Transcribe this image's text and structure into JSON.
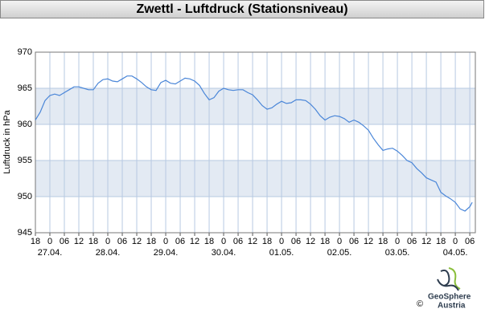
{
  "chart_data": {
    "type": "line",
    "title": "Zwettl - Luftdruck (Stationsniveau)",
    "y_label": "Luftdruck in hPa",
    "x": [
      0,
      2,
      4,
      6,
      8,
      10,
      12,
      14,
      16,
      18,
      20,
      22,
      24,
      26,
      28,
      30,
      32,
      34,
      36,
      38,
      40,
      42,
      44,
      46,
      48,
      50,
      52,
      54,
      56,
      58,
      60,
      62,
      64,
      66,
      68,
      70,
      72,
      74,
      76,
      78,
      80,
      82,
      84,
      86,
      88,
      90,
      92,
      94,
      96,
      98,
      100,
      102,
      104,
      106,
      108,
      110,
      112,
      114,
      116,
      118,
      120,
      122,
      124,
      126,
      128,
      130,
      132,
      134,
      136,
      138,
      140,
      142,
      144,
      146,
      148,
      150,
      152,
      154,
      156,
      158,
      160,
      162,
      164,
      166,
      168,
      170,
      172,
      174,
      176,
      178,
      180,
      181
    ],
    "series": [
      {
        "name": "Luftdruck",
        "color": "#4a86d8",
        "values": [
          960.6,
          961.7,
          963.3,
          964.0,
          964.2,
          964.0,
          964.4,
          964.8,
          965.2,
          965.2,
          965.0,
          964.8,
          964.8,
          965.7,
          966.2,
          966.3,
          966.0,
          965.9,
          966.3,
          966.7,
          966.7,
          966.3,
          965.8,
          965.2,
          964.8,
          964.7,
          965.8,
          966.1,
          965.7,
          965.6,
          966.0,
          966.4,
          966.3,
          966.0,
          965.4,
          964.3,
          963.4,
          963.7,
          964.6,
          965.0,
          964.8,
          964.7,
          964.8,
          964.8,
          964.4,
          964.1,
          963.4,
          962.6,
          962.1,
          962.3,
          962.8,
          963.2,
          962.9,
          963.0,
          963.4,
          963.4,
          963.3,
          962.8,
          962.1,
          961.2,
          960.6,
          961.0,
          961.2,
          961.1,
          960.8,
          960.3,
          960.6,
          960.3,
          959.8,
          959.2,
          958.1,
          957.2,
          956.4,
          956.6,
          956.7,
          956.3,
          955.7,
          955.0,
          954.7,
          953.9,
          953.3,
          952.6,
          952.3,
          952.0,
          950.6,
          950.1,
          949.7,
          949.2,
          948.3,
          948.0,
          948.6,
          949.2
        ]
      }
    ],
    "xlim": [
      0,
      182.3
    ],
    "xticks": [
      {
        "value": 0,
        "label": "18"
      },
      {
        "value": 6,
        "label": "0"
      },
      {
        "value": 12,
        "label": "06"
      },
      {
        "value": 18,
        "label": "12"
      },
      {
        "value": 24,
        "label": "18"
      },
      {
        "value": 30,
        "label": "0"
      },
      {
        "value": 36,
        "label": "06"
      },
      {
        "value": 42,
        "label": "12"
      },
      {
        "value": 48,
        "label": "18"
      },
      {
        "value": 54,
        "label": "0"
      },
      {
        "value": 60,
        "label": "06"
      },
      {
        "value": 66,
        "label": "12"
      },
      {
        "value": 72,
        "label": "18"
      },
      {
        "value": 78,
        "label": "0"
      },
      {
        "value": 84,
        "label": "06"
      },
      {
        "value": 90,
        "label": "12"
      },
      {
        "value": 96,
        "label": "18"
      },
      {
        "value": 102,
        "label": "0"
      },
      {
        "value": 108,
        "label": "06"
      },
      {
        "value": 114,
        "label": "12"
      },
      {
        "value": 120,
        "label": "18"
      },
      {
        "value": 126,
        "label": "0"
      },
      {
        "value": 132,
        "label": "06"
      },
      {
        "value": 138,
        "label": "12"
      },
      {
        "value": 144,
        "label": "18"
      },
      {
        "value": 150,
        "label": "0"
      },
      {
        "value": 156,
        "label": "06"
      },
      {
        "value": 162,
        "label": "12"
      },
      {
        "value": 168,
        "label": "18"
      },
      {
        "value": 174,
        "label": "0"
      },
      {
        "value": 180,
        "label": "06"
      }
    ],
    "date_labels": [
      {
        "value": 6,
        "label": "27.04."
      },
      {
        "value": 30,
        "label": "28.04."
      },
      {
        "value": 54,
        "label": "29.04."
      },
      {
        "value": 78,
        "label": "30.04."
      },
      {
        "value": 102,
        "label": "01.05."
      },
      {
        "value": 126,
        "label": "02.05."
      },
      {
        "value": 150,
        "label": "03.05."
      },
      {
        "value": 174,
        "label": "04.05."
      }
    ],
    "ylim": [
      945,
      970
    ],
    "yticks": [
      945,
      950,
      955,
      960,
      965,
      970
    ],
    "shaded_bands": [
      [
        960,
        965
      ],
      [
        950,
        955
      ]
    ],
    "grid": true,
    "footer": {
      "brand": "GeoSphere",
      "brand_sub": "Austria",
      "copyright": "©"
    }
  }
}
